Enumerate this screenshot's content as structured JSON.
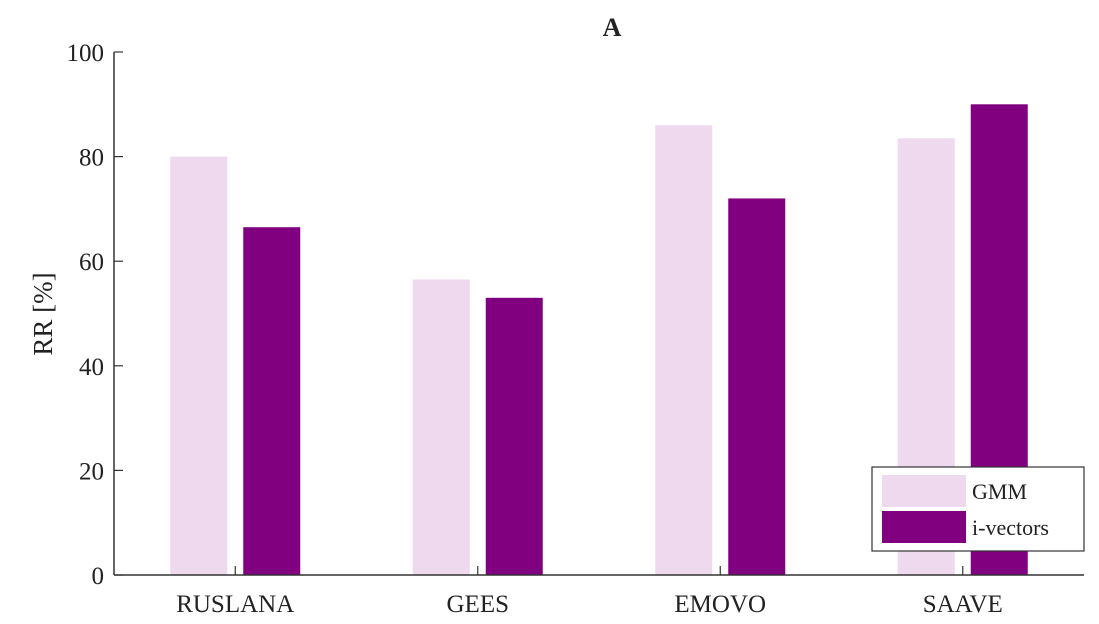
{
  "chart_data": {
    "type": "bar",
    "title": "A",
    "xlabel": "",
    "ylabel": "RR [%]",
    "ylim": [
      0,
      100
    ],
    "yticks": [
      0,
      20,
      40,
      60,
      80,
      100
    ],
    "categories": [
      "RUSLANA",
      "GEES",
      "EMOVO",
      "SAAVE"
    ],
    "series": [
      {
        "name": "GMM",
        "values": [
          80,
          56.5,
          86,
          83.5
        ],
        "color": "#efd9ef"
      },
      {
        "name": "i-vectors",
        "values": [
          66.5,
          53,
          72,
          90
        ],
        "color": "#800080"
      }
    ],
    "legend_position": "bottom-right",
    "grid": false
  }
}
